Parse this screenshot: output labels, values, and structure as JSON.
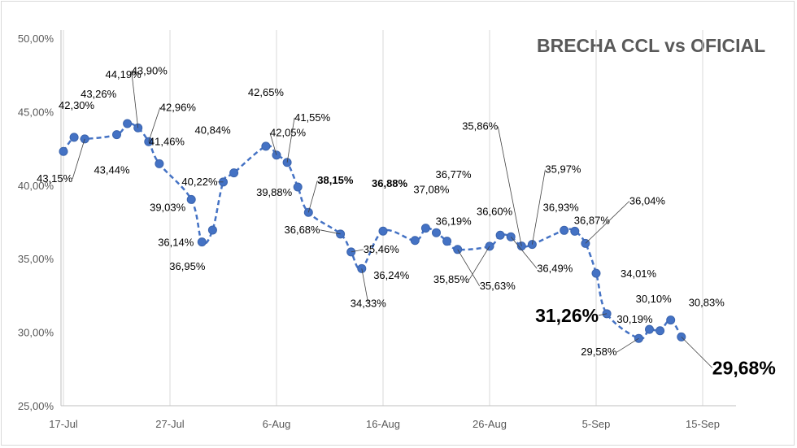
{
  "chart_data": {
    "type": "line",
    "title": "BRECHA CCL vs OFICIAL",
    "xlabel": "",
    "ylabel": "",
    "x_ticks": [
      "17-Jul",
      "27-Jul",
      "6-Aug",
      "16-Aug",
      "26-Aug",
      "5-Sep",
      "15-Sep"
    ],
    "y_ticks": [
      "25,00%",
      "30,00%",
      "35,00%",
      "40,00%",
      "45,00%",
      "50,00%"
    ],
    "ylim": [
      25,
      50
    ],
    "grid": "vertical",
    "series": [
      {
        "color": "#4472c4",
        "points": [
          {
            "x": "2020-07-17",
            "y": 42.3,
            "label": "42,30%"
          },
          {
            "x": "2020-07-18",
            "y": 43.26,
            "label": "43,26%"
          },
          {
            "x": "2020-07-19",
            "y": 43.15,
            "label": "43,15%"
          },
          {
            "x": "2020-07-22",
            "y": 43.44,
            "label": "43,44%"
          },
          {
            "x": "2020-07-23",
            "y": 44.19,
            "label": "44,19%"
          },
          {
            "x": "2020-07-24",
            "y": 43.9,
            "label": "43,90%"
          },
          {
            "x": "2020-07-25",
            "y": 42.96,
            "label": "42,96%"
          },
          {
            "x": "2020-07-26",
            "y": 41.46,
            "label": "41,46%"
          },
          {
            "x": "2020-07-29",
            "y": 39.03,
            "label": "39,03%"
          },
          {
            "x": "2020-07-30",
            "y": 36.14,
            "label": "36,14%"
          },
          {
            "x": "2020-07-31",
            "y": 36.95,
            "label": "36,95%"
          },
          {
            "x": "2020-08-01",
            "y": 40.22,
            "label": "40,22%"
          },
          {
            "x": "2020-08-02",
            "y": 40.84,
            "label": "40,84%"
          },
          {
            "x": "2020-08-05",
            "y": 42.65,
            "label": "42,65%"
          },
          {
            "x": "2020-08-06",
            "y": 42.05,
            "label": "42,05%"
          },
          {
            "x": "2020-08-07",
            "y": 41.55,
            "label": "41,55%"
          },
          {
            "x": "2020-08-08",
            "y": 39.88,
            "label": "39,88%"
          },
          {
            "x": "2020-08-09",
            "y": 38.15,
            "label": "38,15%"
          },
          {
            "x": "2020-08-12",
            "y": 36.68,
            "label": "36,68%"
          },
          {
            "x": "2020-08-13",
            "y": 35.46,
            "label": "35,46%"
          },
          {
            "x": "2020-08-14",
            "y": 34.33,
            "label": "34,33%"
          },
          {
            "x": "2020-08-16",
            "y": 36.88,
            "label": "36,88%"
          },
          {
            "x": "2020-08-19",
            "y": 36.24,
            "label": "36,24%"
          },
          {
            "x": "2020-08-20",
            "y": 37.08,
            "label": "37,08%"
          },
          {
            "x": "2020-08-21",
            "y": 36.77,
            "label": "36,77%"
          },
          {
            "x": "2020-08-22",
            "y": 36.19,
            "label": "36,19%"
          },
          {
            "x": "2020-08-23",
            "y": 35.63,
            "label": "35,63%"
          },
          {
            "x": "2020-08-26",
            "y": 35.85,
            "label": "35,85%"
          },
          {
            "x": "2020-08-27",
            "y": 36.6,
            "label": "36,60%"
          },
          {
            "x": "2020-08-28",
            "y": 36.49,
            "label": "36,49%"
          },
          {
            "x": "2020-08-29",
            "y": 35.86,
            "label": "35,86%"
          },
          {
            "x": "2020-08-30",
            "y": 35.97,
            "label": "35,97%"
          },
          {
            "x": "2020-09-02",
            "y": 36.93,
            "label": "36,93%"
          },
          {
            "x": "2020-09-03",
            "y": 36.87,
            "label": "36,87%"
          },
          {
            "x": "2020-09-04",
            "y": 36.04,
            "label": "36,04%"
          },
          {
            "x": "2020-09-05",
            "y": 34.01,
            "label": "34,01%"
          },
          {
            "x": "2020-09-06",
            "y": 31.26,
            "label": "31,26%"
          },
          {
            "x": "2020-09-09",
            "y": 29.58,
            "label": "29,58%"
          },
          {
            "x": "2020-09-10",
            "y": 30.19,
            "label": "30,19%"
          },
          {
            "x": "2020-09-11",
            "y": 30.1,
            "label": "30,10%"
          },
          {
            "x": "2020-09-12",
            "y": 30.83,
            "label": "30,83%"
          },
          {
            "x": "2020-09-13",
            "y": 29.68,
            "label": "29,68%"
          }
        ]
      }
    ]
  }
}
